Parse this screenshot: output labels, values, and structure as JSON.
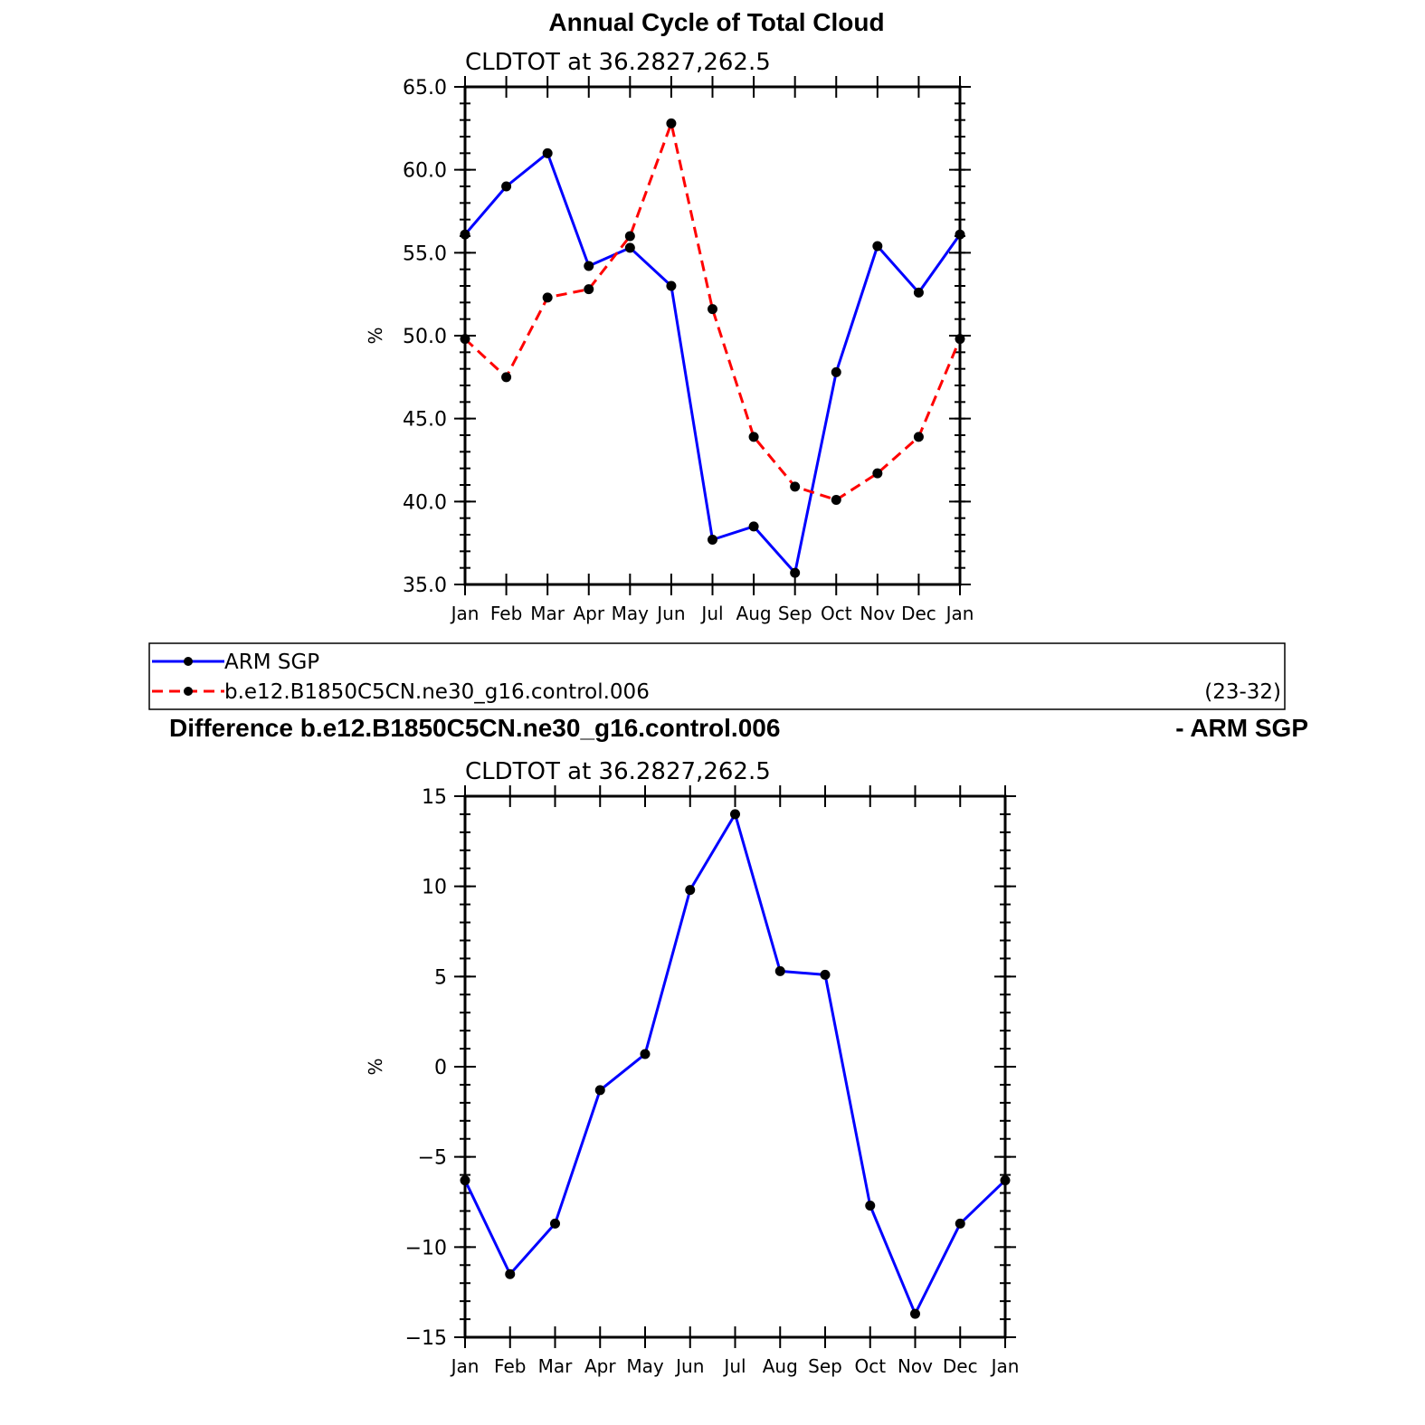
{
  "chart_data": [
    {
      "type": "line",
      "title": "Annual Cycle of Total Cloud",
      "subtitle": "CLDTOT at 36.2827,262.5",
      "ylabel": "%",
      "ylim": [
        35,
        65
      ],
      "yticks": [
        35,
        40,
        45,
        50,
        55,
        60,
        65
      ],
      "ytick_labels": [
        "35.0",
        "40.0",
        "45.0",
        "50.0",
        "55.0",
        "60.0",
        "65.0"
      ],
      "categories": [
        "Jan",
        "Feb",
        "Mar",
        "Apr",
        "May",
        "Jun",
        "Jul",
        "Aug",
        "Sep",
        "Oct",
        "Nov",
        "Dec",
        "Jan"
      ],
      "series": [
        {
          "name": "ARM SGP",
          "color": "#0000ff",
          "dash": "solid",
          "values": [
            56.1,
            59.0,
            61.0,
            54.2,
            55.3,
            53.0,
            37.7,
            38.5,
            35.7,
            47.8,
            55.4,
            52.6,
            56.1
          ]
        },
        {
          "name": "b.e12.B1850C5CN.ne30_g16.control.006",
          "color": "#ff0000",
          "dash": "dashed",
          "values": [
            49.8,
            47.5,
            52.3,
            52.8,
            56.0,
            62.8,
            51.6,
            43.9,
            40.9,
            40.1,
            41.7,
            43.9,
            49.8
          ]
        }
      ],
      "legend": {
        "position": "bottom",
        "years_label": "(23-32)"
      }
    },
    {
      "type": "line",
      "title": "Difference b.e12.B1850C5CN.ne30_g16.control.006",
      "title_right": "- ARM SGP",
      "subtitle": "CLDTOT at 36.2827,262.5",
      "ylabel": "%",
      "ylim": [
        -15,
        15
      ],
      "yticks": [
        -15,
        -10,
        -5,
        0,
        5,
        10,
        15
      ],
      "ytick_labels": [
        "−15",
        "−10",
        "−5",
        "0",
        "5",
        "10",
        "15"
      ],
      "categories": [
        "Jan",
        "Feb",
        "Mar",
        "Apr",
        "May",
        "Jun",
        "Jul",
        "Aug",
        "Sep",
        "Oct",
        "Nov",
        "Dec",
        "Jan"
      ],
      "series": [
        {
          "color": "#0000ff",
          "dash": "solid",
          "values": [
            -6.3,
            -11.5,
            -8.7,
            -1.3,
            0.7,
            9.8,
            14.0,
            5.3,
            5.1,
            -7.7,
            -13.7,
            -8.7,
            -6.3
          ]
        }
      ]
    }
  ]
}
